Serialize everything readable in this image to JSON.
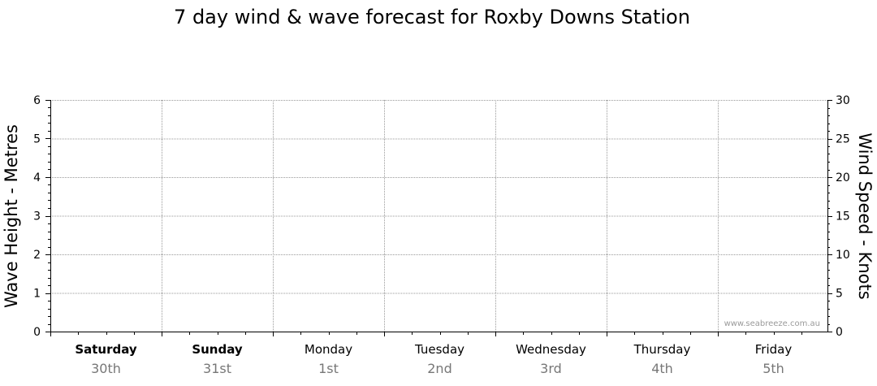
{
  "chart_data": {
    "type": "line",
    "title": "7 day wind & wave forecast for Roxby Downs Station",
    "ylabel_left": "Wave Height - Metres",
    "ylabel_right": "Wind Speed - Knots",
    "ylim_left": [
      0,
      6
    ],
    "yticks_left": [
      "0",
      "1",
      "2",
      "3",
      "4",
      "5",
      "6"
    ],
    "ylim_right": [
      0,
      30
    ],
    "yticks_right": [
      "0",
      "5",
      "10",
      "15",
      "20",
      "25",
      "30"
    ],
    "days": [
      {
        "name": "Saturday",
        "date": "30th",
        "bold": true
      },
      {
        "name": "Sunday",
        "date": "31st",
        "bold": true
      },
      {
        "name": "Monday",
        "date": "1st",
        "bold": false
      },
      {
        "name": "Tuesday",
        "date": "2nd",
        "bold": false
      },
      {
        "name": "Wednesday",
        "date": "3rd",
        "bold": false
      },
      {
        "name": "Thursday",
        "date": "4th",
        "bold": false
      },
      {
        "name": "Friday",
        "date": "5th",
        "bold": false
      }
    ],
    "grid": true,
    "series": [],
    "watermark": "www.seabreeze.com.au"
  }
}
